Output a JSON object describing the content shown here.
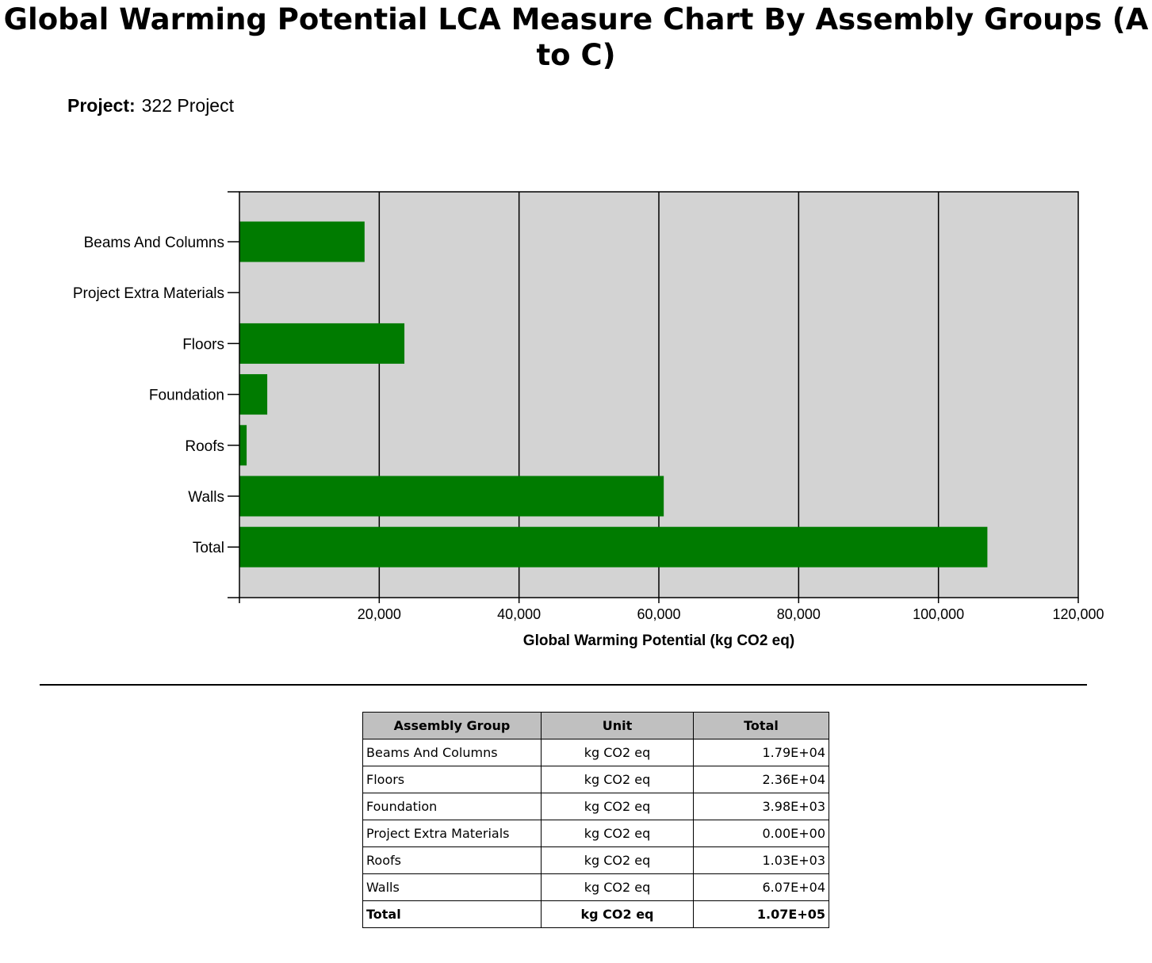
{
  "page": {
    "title": "Global Warming Potential LCA Measure Chart By Assembly Groups (A to C)",
    "project_label": "Project:",
    "project_name": "322 Project"
  },
  "chart_data": {
    "type": "bar",
    "orientation": "horizontal",
    "categories": [
      "Beams And Columns",
      "Project Extra Materials",
      "Floors",
      "Foundation",
      "Roofs",
      "Walls",
      "Total"
    ],
    "values": [
      17900,
      0,
      23600,
      3980,
      1030,
      60700,
      107000
    ],
    "xlabel": "Global Warming Potential (kg CO2 eq)",
    "ylabel": "",
    "xlim": [
      0,
      120000
    ],
    "xticks": [
      20000,
      40000,
      60000,
      80000,
      100000,
      120000
    ],
    "xtick_labels": [
      "20,000",
      "40,000",
      "60,000",
      "80,000",
      "100,000",
      "120,000"
    ],
    "grid": "vertical",
    "colors": {
      "bar": "#007b00",
      "plot_background": "#d3d3d3",
      "grid": "#000000"
    }
  },
  "table": {
    "headers": [
      "Assembly Group",
      "Unit",
      "Total"
    ],
    "rows": [
      [
        "Beams And Columns",
        "kg CO2 eq",
        "1.79E+04"
      ],
      [
        "Floors",
        "kg CO2 eq",
        "2.36E+04"
      ],
      [
        "Foundation",
        "kg CO2 eq",
        "3.98E+03"
      ],
      [
        "Project Extra Materials",
        "kg CO2 eq",
        "0.00E+00"
      ],
      [
        "Roofs",
        "kg CO2 eq",
        "1.03E+03"
      ],
      [
        "Walls",
        "kg CO2 eq",
        "6.07E+04"
      ]
    ],
    "total_row": [
      "Total",
      "kg CO2 eq",
      "1.07E+05"
    ]
  }
}
